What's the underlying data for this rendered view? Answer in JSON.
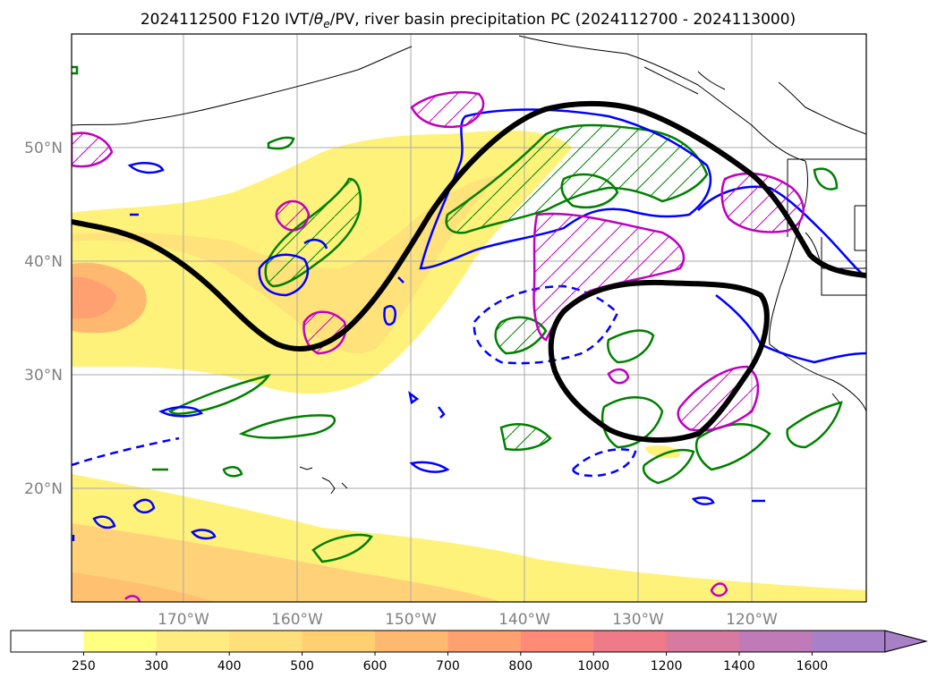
{
  "title_main": "2024112500 F120 IVT/",
  "title_theta": "θ",
  "title_theta_sub": "e",
  "title_rest": "/PV, river basin precipitation PC (2024112700 - 2024113000)",
  "lat_labels": [
    "50°N",
    "40°N",
    "30°N",
    "20°N"
  ],
  "lon_labels": [
    "170°W",
    "160°W",
    "150°W",
    "140°W",
    "130°W",
    "120°W"
  ],
  "colorbar": {
    "ticks": [
      "250",
      "300",
      "400",
      "500",
      "600",
      "700",
      "800",
      "1000",
      "1200",
      "1400",
      "1600"
    ],
    "colors": [
      "#ffffff",
      "#ffff80",
      "#ffeb80",
      "#ffdf7a",
      "#ffcf70",
      "#ffb870",
      "#ffa070",
      "#ff8a78",
      "#ef7a88",
      "#d87aa0",
      "#bf7ab8",
      "#a880c8"
    ],
    "extend": "max"
  },
  "map_colors": {
    "ivt_low": "#fff27a",
    "ivt_mid": "#ffd27a",
    "ivt_high": "#ffa870",
    "contour_black": "#000000",
    "contour_blue": "#0000ff",
    "contour_green": "#008000",
    "contour_magenta": "#c000c0"
  }
}
